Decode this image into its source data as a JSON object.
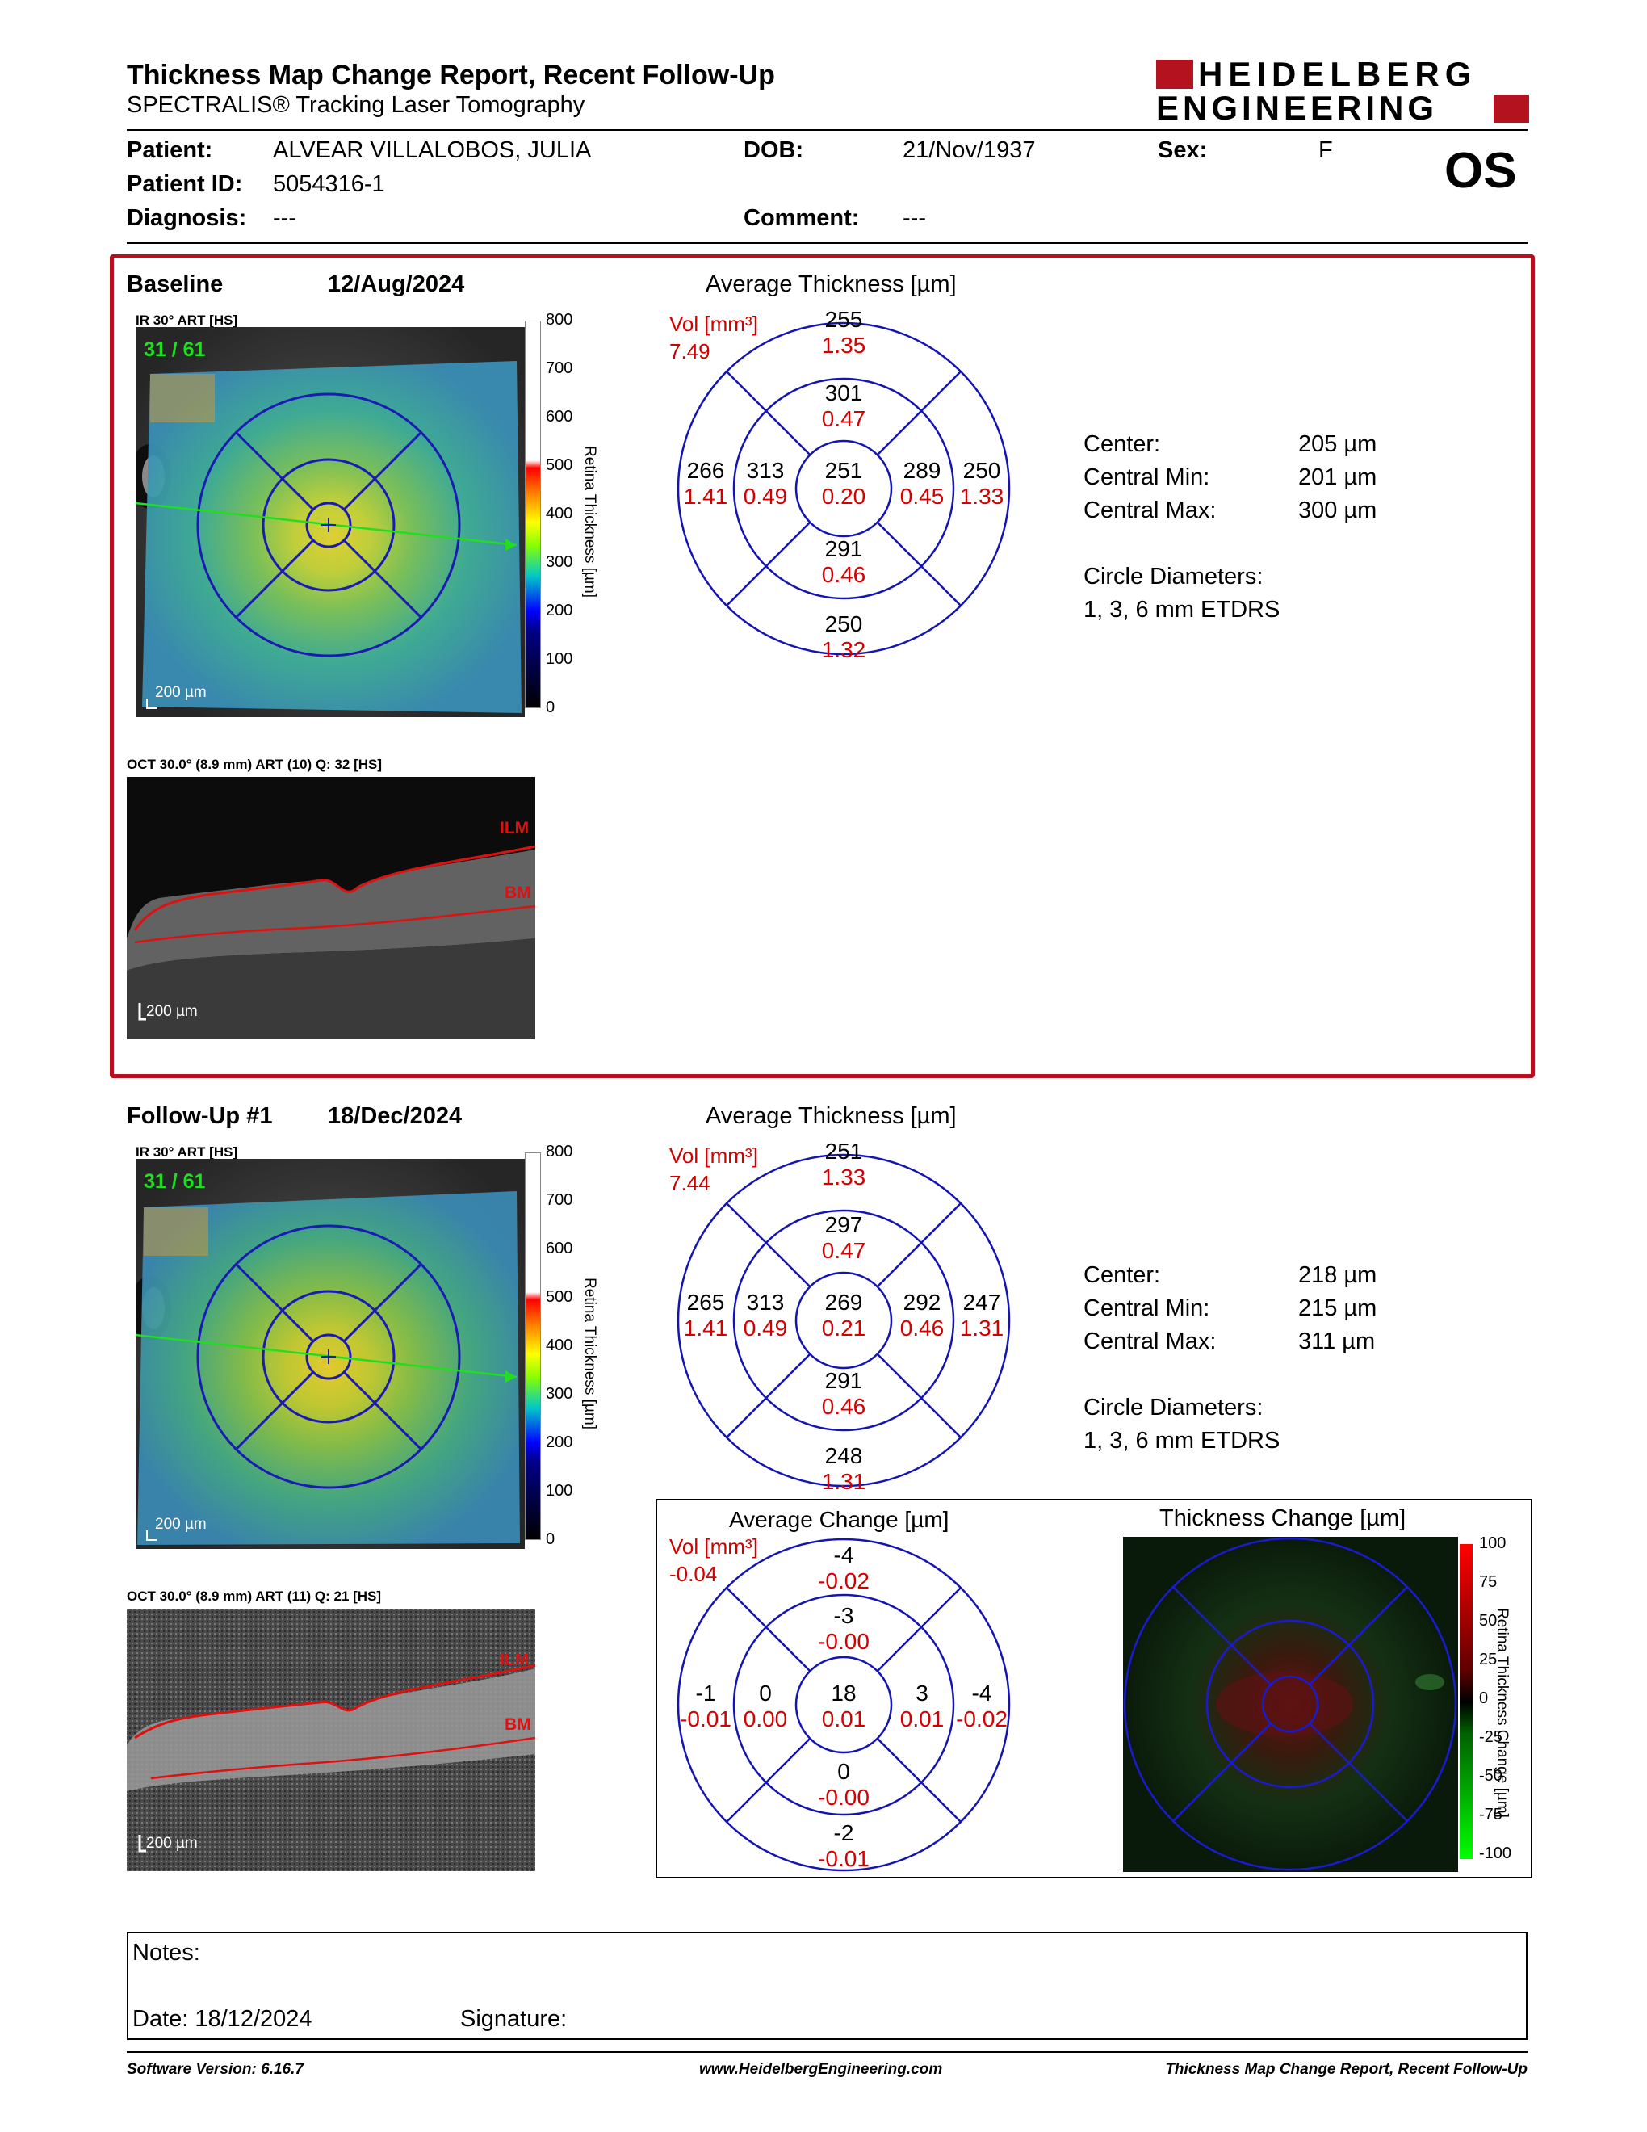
{
  "header": {
    "title": "Thickness Map Change Report, Recent Follow-Up",
    "subtitle": "SPECTRALIS® Tracking Laser Tomography",
    "logo_line1": "HEIDELBERG",
    "logo_line2": "ENGINEERING",
    "eye": "OS"
  },
  "patient": {
    "patient_label": "Patient:",
    "patient_value": "ALVEAR VILLALOBOS, JULIA",
    "dob_label": "DOB:",
    "dob_value": "21/Nov/1937",
    "sex_label": "Sex:",
    "sex_value": "F",
    "id_label": "Patient ID:",
    "id_value": "5054316-1",
    "diagnosis_label": "Diagnosis:",
    "diagnosis_value": "---",
    "comment_label": "Comment:",
    "comment_value": "---"
  },
  "baseline": {
    "label": "Baseline",
    "date": "12/Aug/2024",
    "ir_label": "IR 30° ART [HS]",
    "ir_counter": "31 / 61",
    "ir_scale": "200 µm",
    "oct_label": "OCT 30.0° (8.9 mm) ART (10) Q: 32 [HS]",
    "oct_scale": "200 µm",
    "ilm": "ILM",
    "bm": "BM",
    "avg_title": "Average Thickness [µm]",
    "vol_label": "Vol [mm³]",
    "vol_value": "7.49",
    "grid": {
      "sup_outer": [
        "255",
        "1.35"
      ],
      "sup_inner": [
        "301",
        "0.47"
      ],
      "temp_outer": [
        "266",
        "1.41"
      ],
      "temp_inner": [
        "313",
        "0.49"
      ],
      "center": [
        "251",
        "0.20"
      ],
      "nasal_inner": [
        "289",
        "0.45"
      ],
      "nasal_outer": [
        "250",
        "1.33"
      ],
      "inf_inner": [
        "291",
        "0.46"
      ],
      "inf_outer": [
        "250",
        "1.32"
      ]
    },
    "stats": {
      "center_label": "Center:",
      "center_value": "205 µm",
      "min_label": "Central Min:",
      "min_value": "201 µm",
      "max_label": "Central Max:",
      "max_value": "300 µm",
      "circle_label": "Circle Diameters:",
      "circle_value": "1, 3, 6 mm ETDRS"
    }
  },
  "followup": {
    "label": "Follow-Up #1",
    "date": "18/Dec/2024",
    "ir_label": "IR 30° ART [HS]",
    "ir_counter": "31 / 61",
    "ir_scale": "200 µm",
    "oct_label": "OCT 30.0° (8.9 mm) ART (11) Q: 21 [HS]",
    "oct_scale": "200 µm",
    "ilm": "ILM",
    "bm": "BM",
    "avg_title": "Average Thickness [µm]",
    "vol_label": "Vol [mm³]",
    "vol_value": "7.44",
    "grid": {
      "sup_outer": [
        "251",
        "1.33"
      ],
      "sup_inner": [
        "297",
        "0.47"
      ],
      "temp_outer": [
        "265",
        "1.41"
      ],
      "temp_inner": [
        "313",
        "0.49"
      ],
      "center": [
        "269",
        "0.21"
      ],
      "nasal_inner": [
        "292",
        "0.46"
      ],
      "nasal_outer": [
        "247",
        "1.31"
      ],
      "inf_inner": [
        "291",
        "0.46"
      ],
      "inf_outer": [
        "248",
        "1.31"
      ]
    },
    "stats": {
      "center_label": "Center:",
      "center_value": "218 µm",
      "min_label": "Central Min:",
      "min_value": "215 µm",
      "max_label": "Central Max:",
      "max_value": "311 µm",
      "circle_label": "Circle Diameters:",
      "circle_value": "1, 3, 6 mm ETDRS"
    }
  },
  "change": {
    "avg_title": "Average Change [µm]",
    "vol_label": "Vol [mm³]",
    "vol_value": "-0.04",
    "grid": {
      "sup_outer": [
        "-4",
        "-0.02"
      ],
      "sup_inner": [
        "-3",
        "-0.00"
      ],
      "temp_outer": [
        "-1",
        "-0.01"
      ],
      "temp_inner": [
        "0",
        "0.00"
      ],
      "center": [
        "18",
        "0.01"
      ],
      "nasal_inner": [
        "3",
        "0.01"
      ],
      "nasal_outer": [
        "-4",
        "-0.02"
      ],
      "inf_inner": [
        "0",
        "-0.00"
      ],
      "inf_outer": [
        "-2",
        "-0.01"
      ]
    },
    "map_title": "Thickness Change [µm]"
  },
  "scales": {
    "thickness_ticks": [
      "800",
      "700",
      "600",
      "500",
      "400",
      "300",
      "200",
      "100",
      "0"
    ],
    "thickness_label": "Retina Thickness [µm]",
    "change_ticks": [
      "100",
      "75",
      "50",
      "25",
      "0",
      "-25",
      "-50",
      "-75",
      "-100"
    ],
    "change_label": "Retina Thickness Change [µm]"
  },
  "notes": {
    "notes_label": "Notes:",
    "date_label": "Date: 18/12/2024",
    "signature_label": "Signature:"
  },
  "footer": {
    "left": "Software Version: 6.16.7",
    "center": "www.HeidelbergEngineering.com",
    "right": "Thickness Map Change Report, Recent Follow-Up"
  },
  "colors": {
    "frame_red": "#b3121e",
    "grid_blue": "#1414b4",
    "value_red": "#d40000",
    "scan_line": "#22dd22"
  }
}
